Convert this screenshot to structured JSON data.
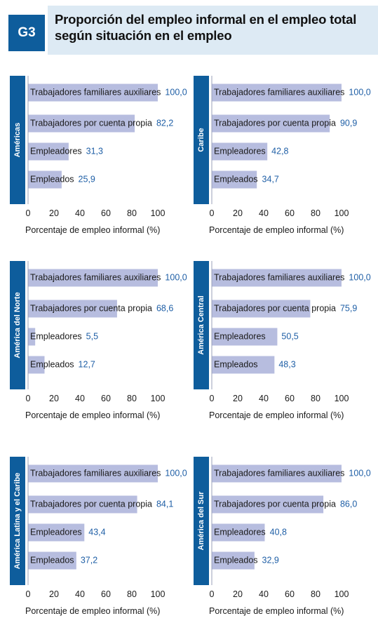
{
  "figure": {
    "badge": "G3",
    "title": "Proporción del empleo informal en el empleo total según situación en el empleo"
  },
  "colors": {
    "bar": "#b7bddf",
    "region_band": "#0e5d9c",
    "value_text": "#1f5fa6",
    "title_bg": "#ddeaf4"
  },
  "chart_data": [
    {
      "type": "bar",
      "orientation": "horizontal",
      "region": "Américas",
      "categories": [
        "Trabajadores familiares auxiliares",
        "Trabajadores por cuenta propia",
        "Empleadores",
        "Empleados"
      ],
      "values": [
        100.0,
        82.2,
        31.3,
        25.9
      ],
      "value_labels": [
        "100,0",
        "82,2",
        "31,3",
        "25,9"
      ],
      "xlim": [
        0,
        100
      ],
      "xticks": [
        "0",
        "20",
        "40",
        "60",
        "80",
        "100"
      ],
      "xlabel": "Porcentaje de empleo informal (%)"
    },
    {
      "type": "bar",
      "orientation": "horizontal",
      "region": "Caribe",
      "categories": [
        "Trabajadores familiares auxiliares",
        "Trabajadores por cuenta propia",
        "Empleadores",
        "Empleados"
      ],
      "values": [
        100.0,
        90.9,
        42.8,
        34.7
      ],
      "value_labels": [
        "100,0",
        "90,9",
        "42,8",
        "34,7"
      ],
      "xlim": [
        0,
        100
      ],
      "xticks": [
        "0",
        "20",
        "40",
        "60",
        "80",
        "100"
      ],
      "xlabel": "Porcentaje de empleo informal (%)"
    },
    {
      "type": "bar",
      "orientation": "horizontal",
      "region": "América del Norte",
      "categories": [
        "Trabajadores familiares auxiliares",
        "Trabajadores por cuenta propia",
        "Empleadores",
        "Empleados"
      ],
      "values": [
        100.0,
        68.6,
        5.5,
        12.7
      ],
      "value_labels": [
        "100,0",
        "68,6",
        "5,5",
        "12,7"
      ],
      "xlim": [
        0,
        100
      ],
      "xticks": [
        "0",
        "20",
        "40",
        "60",
        "80",
        "100"
      ],
      "xlabel": "Porcentaje de empleo informal (%)"
    },
    {
      "type": "bar",
      "orientation": "horizontal",
      "region": "América Central",
      "categories": [
        "Trabajadores familiares auxiliares",
        "Trabajadores por cuenta propia",
        "Empleadores",
        "Empleados"
      ],
      "values": [
        100.0,
        75.9,
        50.5,
        48.3
      ],
      "value_labels": [
        "100,0",
        "75,9",
        "50,5",
        "48,3"
      ],
      "xlim": [
        0,
        100
      ],
      "xticks": [
        "0",
        "20",
        "40",
        "60",
        "80",
        "100"
      ],
      "xlabel": "Porcentaje de empleo informal (%)"
    },
    {
      "type": "bar",
      "orientation": "horizontal",
      "region": "América Latina y el Caribe",
      "categories": [
        "Trabajadores familiares auxiliares",
        "Trabajadores por cuenta propia",
        "Empleadores",
        "Empleados"
      ],
      "values": [
        100.0,
        84.1,
        43.4,
        37.2
      ],
      "value_labels": [
        "100,0",
        "84,1",
        "43,4",
        "37,2"
      ],
      "xlim": [
        0,
        100
      ],
      "xticks": [
        "0",
        "20",
        "40",
        "60",
        "80",
        "100"
      ],
      "xlabel": "Porcentaje de empleo informal (%)"
    },
    {
      "type": "bar",
      "orientation": "horizontal",
      "region": "América del Sur",
      "categories": [
        "Trabajadores familiares auxiliares",
        "Trabajadores por cuenta propia",
        "Empleadores",
        "Empleados"
      ],
      "values": [
        100.0,
        86.0,
        40.8,
        32.9
      ],
      "value_labels": [
        "100,0",
        "86,0",
        "40,8",
        "32,9"
      ],
      "xlim": [
        0,
        100
      ],
      "xticks": [
        "0",
        "20",
        "40",
        "60",
        "80",
        "100"
      ],
      "xlabel": "Porcentaje de empleo informal (%)"
    }
  ]
}
